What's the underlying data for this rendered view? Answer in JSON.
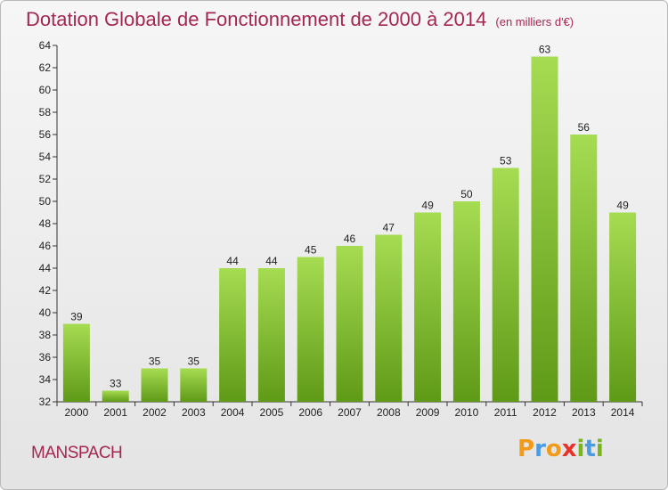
{
  "title": "Dotation Globale de Fonctionnement de 2000 à 2014",
  "unit": "(en milliers d'€)",
  "commune": "MANSPACH",
  "logo": {
    "letters": [
      "P",
      "r",
      "o",
      "x",
      "i",
      "t",
      "i"
    ],
    "colors": [
      "#f29a1a",
      "#4a9be0",
      "#f29a1a",
      "#e6322a",
      "#7ab51d",
      "#4a9be0",
      "#7ab51d"
    ]
  },
  "colors": {
    "bar_light": "#a6dc52",
    "bar_dark": "#5f9a17",
    "title": "#a3284f"
  },
  "chart_data": {
    "type": "bar",
    "title": "Dotation Globale de Fonctionnement de 2000 à 2014",
    "subtitle": "(en milliers d'€)",
    "categories": [
      "2000",
      "2001",
      "2002",
      "2003",
      "2004",
      "2005",
      "2006",
      "2007",
      "2008",
      "2009",
      "2010",
      "2011",
      "2012",
      "2013",
      "2014"
    ],
    "values": [
      39,
      33,
      35,
      35,
      44,
      44,
      45,
      46,
      47,
      49,
      50,
      53,
      63,
      56,
      49
    ],
    "ylim": [
      32,
      64
    ],
    "yticks": [
      32,
      34,
      36,
      38,
      40,
      42,
      44,
      46,
      48,
      50,
      52,
      54,
      56,
      58,
      60,
      62,
      64
    ],
    "grid": false,
    "legend": "none"
  }
}
